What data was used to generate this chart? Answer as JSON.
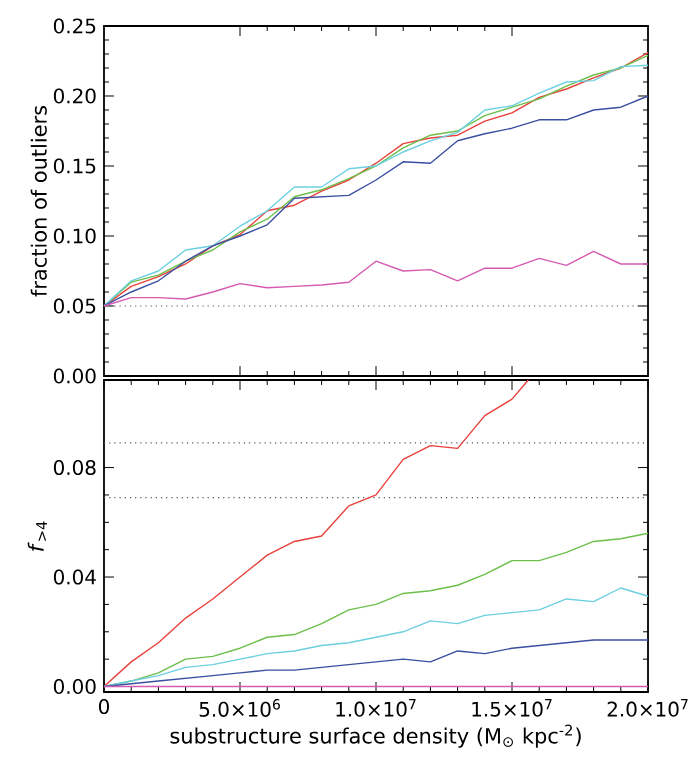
{
  "chart_data": [
    {
      "type": "line",
      "ylabel": "fraction of outliers",
      "x": [
        0,
        1000000,
        2000000,
        3000000,
        4000000,
        5000000,
        6000000,
        7000000,
        8000000,
        9000000,
        10000000,
        11000000,
        12000000,
        13000000,
        14000000,
        15000000,
        16000000,
        17000000,
        18000000,
        19000000,
        20000000
      ],
      "series": [
        {
          "color": "#e8413c",
          "values": [
            0.05,
            0.064,
            0.071,
            0.08,
            0.093,
            0.101,
            0.118,
            0.122,
            0.132,
            0.14,
            0.152,
            0.166,
            0.17,
            0.172,
            0.182,
            0.188,
            0.199,
            0.205,
            0.213,
            0.22,
            0.231
          ]
        },
        {
          "color": "#6cbf4a",
          "values": [
            0.05,
            0.067,
            0.072,
            0.082,
            0.09,
            0.103,
            0.112,
            0.128,
            0.133,
            0.141,
            0.15,
            0.163,
            0.172,
            0.175,
            0.186,
            0.192,
            0.198,
            0.207,
            0.215,
            0.22,
            0.229
          ]
        },
        {
          "color": "#6cd0e0",
          "values": [
            0.05,
            0.068,
            0.075,
            0.09,
            0.093,
            0.107,
            0.118,
            0.135,
            0.135,
            0.148,
            0.15,
            0.16,
            0.168,
            0.174,
            0.19,
            0.193,
            0.202,
            0.21,
            0.211,
            0.221,
            0.222
          ]
        },
        {
          "color": "#3a4fa0",
          "values": [
            0.05,
            0.06,
            0.068,
            0.082,
            0.093,
            0.1,
            0.108,
            0.127,
            0.128,
            0.129,
            0.14,
            0.153,
            0.152,
            0.168,
            0.173,
            0.177,
            0.183,
            0.183,
            0.19,
            0.192,
            0.2
          ]
        },
        {
          "color": "#d55ab0",
          "values": [
            0.05,
            0.056,
            0.056,
            0.055,
            0.06,
            0.066,
            0.063,
            0.064,
            0.065,
            0.067,
            0.082,
            0.075,
            0.076,
            0.068,
            0.077,
            0.077,
            0.084,
            0.079,
            0.089,
            0.08,
            0.08
          ]
        }
      ],
      "xlim": [
        0,
        20000000
      ],
      "ylim": [
        0,
        0.25
      ],
      "xticks": [
        {
          "value": 5000000,
          "label": null
        },
        {
          "value": 10000000,
          "label": null
        },
        {
          "value": 15000000,
          "label": null
        }
      ],
      "yticks": [
        {
          "value": 0,
          "label": "0.00"
        },
        {
          "value": 0.05,
          "label": "0.05"
        },
        {
          "value": 0.1,
          "label": "0.10"
        },
        {
          "value": 0.15,
          "label": "0.15"
        },
        {
          "value": 0.2,
          "label": "0.20"
        },
        {
          "value": 0.25,
          "label": "0.25"
        }
      ],
      "tick_labels": "y",
      "ref_lines": [
        {
          "axis": "y",
          "value": 0.05,
          "color": "#555555",
          "line_style": "dotted"
        }
      ]
    },
    {
      "type": "line",
      "xlabel": "substructure surface density (M$_{⊙}$ kpc$^{-2}$)",
      "ylabel": "*f*$_{>4}$",
      "x": [
        0,
        1000000,
        2000000,
        3000000,
        4000000,
        5000000,
        6000000,
        7000000,
        8000000,
        9000000,
        10000000,
        11000000,
        12000000,
        13000000,
        14000000,
        15000000,
        16000000,
        17000000,
        18000000,
        19000000,
        20000000
      ],
      "series": [
        {
          "color": "#e8413c",
          "x": [
            0,
            1000000,
            2000000,
            3000000,
            4000000,
            5000000,
            6000000,
            7000000,
            8000000,
            9000000,
            10000000,
            11000000,
            12000000,
            13000000,
            14000000,
            15000000,
            15600000
          ],
          "values": [
            0,
            0.009,
            0.016,
            0.025,
            0.032,
            0.04,
            0.048,
            0.053,
            0.055,
            0.066,
            0.07,
            0.083,
            0.088,
            0.087,
            0.099,
            0.105,
            0.112
          ]
        },
        {
          "color": "#6cbf4a",
          "values": [
            0,
            0.002,
            0.005,
            0.01,
            0.011,
            0.014,
            0.018,
            0.019,
            0.023,
            0.028,
            0.03,
            0.034,
            0.035,
            0.037,
            0.041,
            0.046,
            0.046,
            0.049,
            0.053,
            0.054,
            0.056
          ]
        },
        {
          "color": "#6cd0e0",
          "values": [
            0,
            0.002,
            0.004,
            0.007,
            0.008,
            0.01,
            0.012,
            0.013,
            0.015,
            0.016,
            0.018,
            0.02,
            0.024,
            0.023,
            0.026,
            0.027,
            0.028,
            0.032,
            0.031,
            0.036,
            0.033
          ]
        },
        {
          "color": "#3a4fa0",
          "values": [
            0,
            0.001,
            0.002,
            0.003,
            0.004,
            0.005,
            0.006,
            0.006,
            0.007,
            0.008,
            0.009,
            0.01,
            0.009,
            0.013,
            0.012,
            0.014,
            0.015,
            0.016,
            0.017,
            0.017,
            0.017
          ]
        },
        {
          "color": "#d55ab0",
          "values": [
            0,
            0,
            0,
            0,
            0,
            0,
            0,
            0,
            0,
            0,
            0,
            0,
            0,
            0,
            0,
            0,
            0,
            0,
            0,
            0,
            0
          ]
        }
      ],
      "xlim": [
        0,
        20000000
      ],
      "ylim": [
        -0.002,
        0.112
      ],
      "xticks": [
        0,
        {
          "value": 5000000,
          "label": "5.0×10$^{6}$"
        },
        {
          "value": 10000000,
          "label": "1.0×10$^{7}$"
        },
        {
          "value": 15000000,
          "label": "1.5×10$^{7}$"
        },
        {
          "value": 20000000,
          "label": "2.0×10$^{7}$"
        }
      ],
      "yticks": [
        {
          "value": 0,
          "label": "0.00"
        },
        {
          "value": 0.04,
          "label": "0.04"
        },
        {
          "value": 0.08,
          "label": "0.08"
        }
      ],
      "ref_lines": [
        {
          "axis": "y",
          "value": 0.089,
          "color": "#555555",
          "line_style": "dotted"
        },
        {
          "axis": "y",
          "value": 0.069,
          "color": "#555555",
          "line_style": "dotted"
        }
      ]
    }
  ]
}
